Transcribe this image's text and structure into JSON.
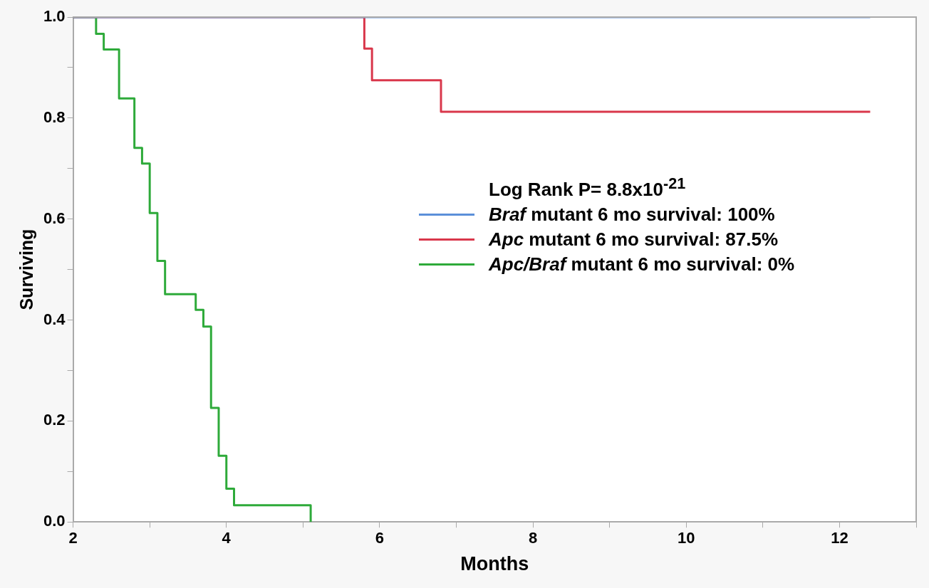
{
  "chart_data": {
    "type": "step",
    "xlabel": "Months",
    "ylabel": "Surviving",
    "legend_title": "Log Rank P= 8.8x10$^{-21}$",
    "legend": "right",
    "grid": false,
    "marker": "none",
    "line_style": "solid",
    "xlim": [
      2,
      13
    ],
    "xticks": [
      2,
      {
        "value": 3,
        "label": null
      },
      4,
      {
        "value": 5,
        "label": null
      },
      6,
      {
        "value": 7,
        "label": null
      },
      8,
      {
        "value": 9,
        "label": null
      },
      10,
      {
        "value": 11,
        "label": null
      },
      12,
      {
        "value": 13,
        "label": null
      }
    ],
    "ylim": [
      0,
      1
    ],
    "yticks": [
      {
        "value": 0,
        "label": "0.0"
      },
      {
        "value": 0.1,
        "label": null
      },
      0.2,
      {
        "value": 0.3,
        "label": null
      },
      0.4,
      {
        "value": 0.5,
        "label": null
      },
      0.6,
      {
        "value": 0.7,
        "label": null
      },
      0.8,
      {
        "value": 0.9,
        "label": null
      },
      {
        "value": 1,
        "label": "1.0"
      }
    ],
    "series": [
      {
        "name": "Braf mutant 6 mo survival: 100%",
        "color": "#5b8fd9",
        "x": [
          2,
          12.4
        ],
        "values": [
          1,
          1
        ]
      },
      {
        "name": "Apc mutant 6 mo survival: 87.5%",
        "color": "#d9374b",
        "x": [
          2,
          5.8,
          5.9,
          6.8,
          12.4
        ],
        "values": [
          1,
          0.9375,
          0.875,
          0.8125,
          0.8125
        ]
      },
      {
        "name": "Apc/Braf mutant 6 mo survival: 0%",
        "color": "#2eaa3a",
        "x": [
          2,
          2.3,
          2.4,
          2.6,
          2.8,
          2.9,
          3.0,
          3.1,
          3.2,
          3.6,
          3.7,
          3.8,
          3.9,
          4.0,
          4.1,
          5.1
        ],
        "values": [
          1,
          0.967,
          0.936,
          0.839,
          0.741,
          0.71,
          0.612,
          0.517,
          0.451,
          0.42,
          0.387,
          0.226,
          0.131,
          0.066,
          0.033,
          0
        ]
      }
    ]
  }
}
